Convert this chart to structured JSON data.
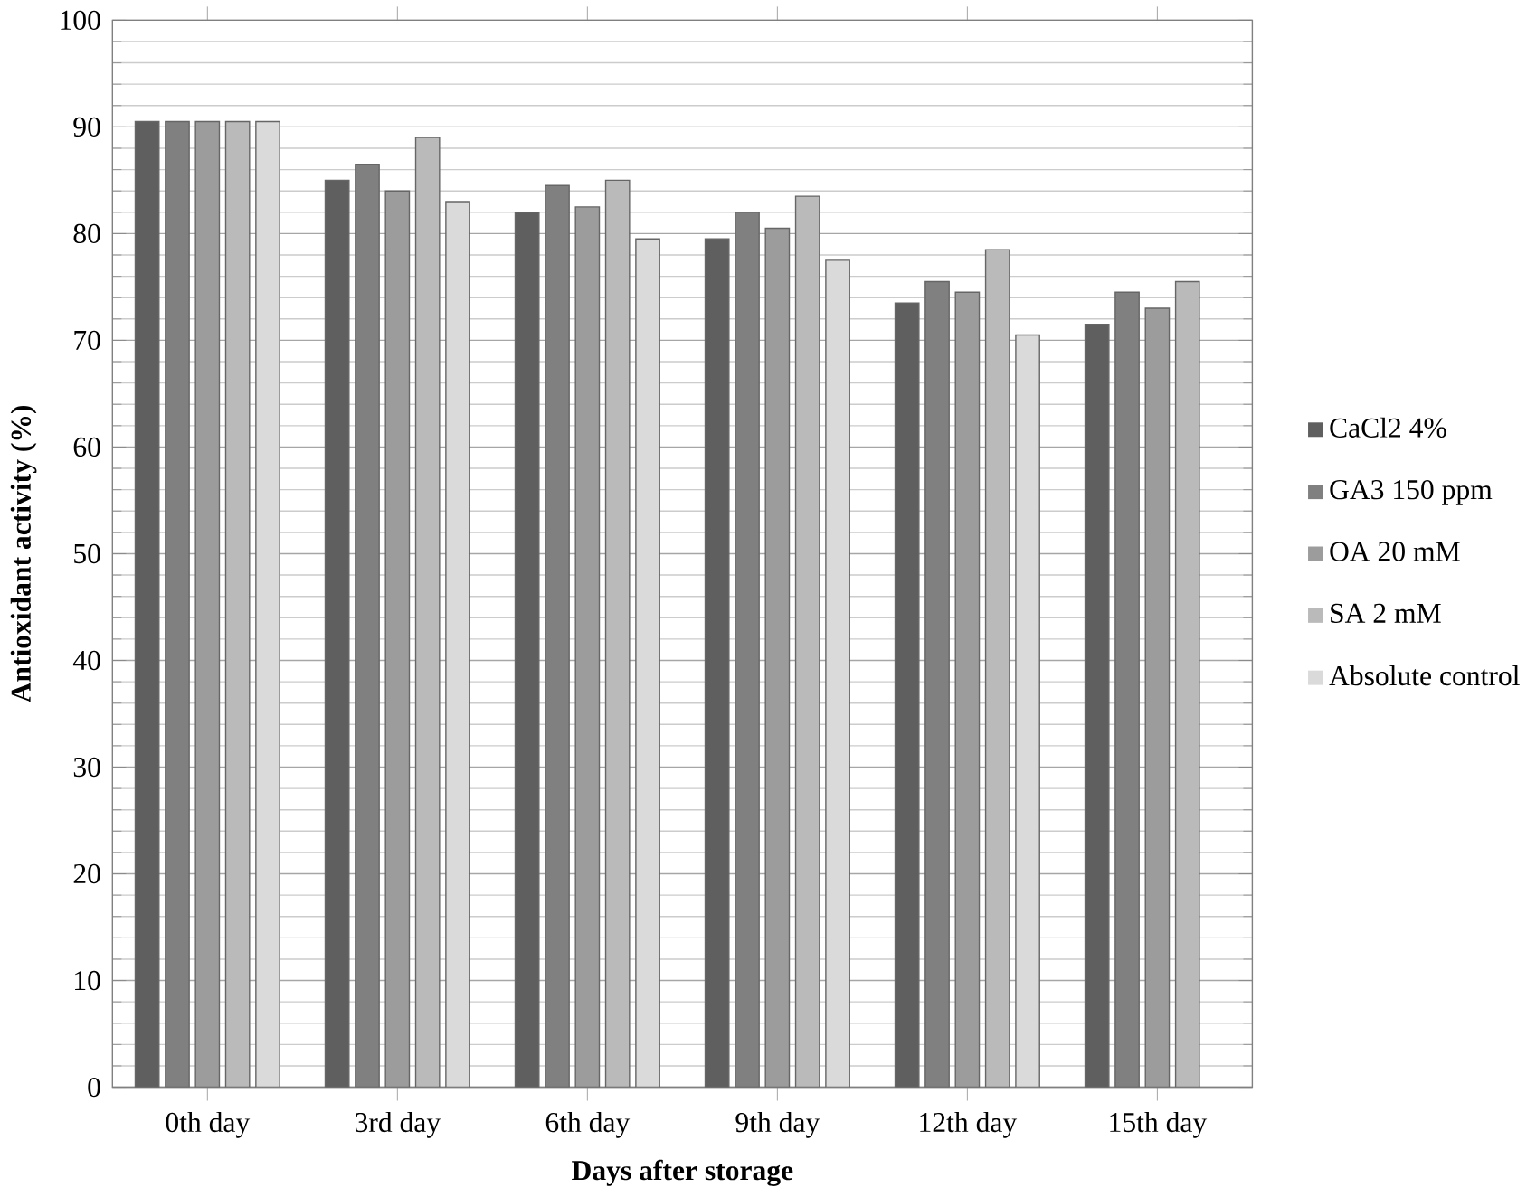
{
  "chart_data": {
    "type": "bar",
    "xlabel": "Days  after storage",
    "ylabel": "Antioxidant  activity (%)",
    "categories": [
      "0th day",
      "3rd day",
      "6th day",
      "9th day",
      "12th day",
      "15th day"
    ],
    "series": [
      {
        "name": "CaCl2 4%",
        "color": "#5f5f5f",
        "values": [
          90.5,
          85,
          82,
          79.5,
          73.5,
          71.5
        ]
      },
      {
        "name": "GA3 150 ppm",
        "color": "#808080",
        "values": [
          90.5,
          86.5,
          84.5,
          82,
          75.5,
          74.5
        ]
      },
      {
        "name": "OA 20 mM",
        "color": "#9c9c9c",
        "values": [
          90.5,
          84,
          82.5,
          80.5,
          74.5,
          73
        ]
      },
      {
        "name": "SA 2 mM",
        "color": "#bababa",
        "values": [
          90.5,
          89,
          85,
          83.5,
          78.5,
          75.5
        ]
      },
      {
        "name": "Absolute control",
        "color": "#dadada",
        "values": [
          90.5,
          83,
          79.5,
          77.5,
          70.5,
          null
        ]
      }
    ],
    "ylim": [
      0,
      100
    ],
    "yticks": [
      0,
      10,
      20,
      30,
      40,
      50,
      60,
      70,
      80,
      90,
      100
    ],
    "grid": "y",
    "legend": "right"
  }
}
